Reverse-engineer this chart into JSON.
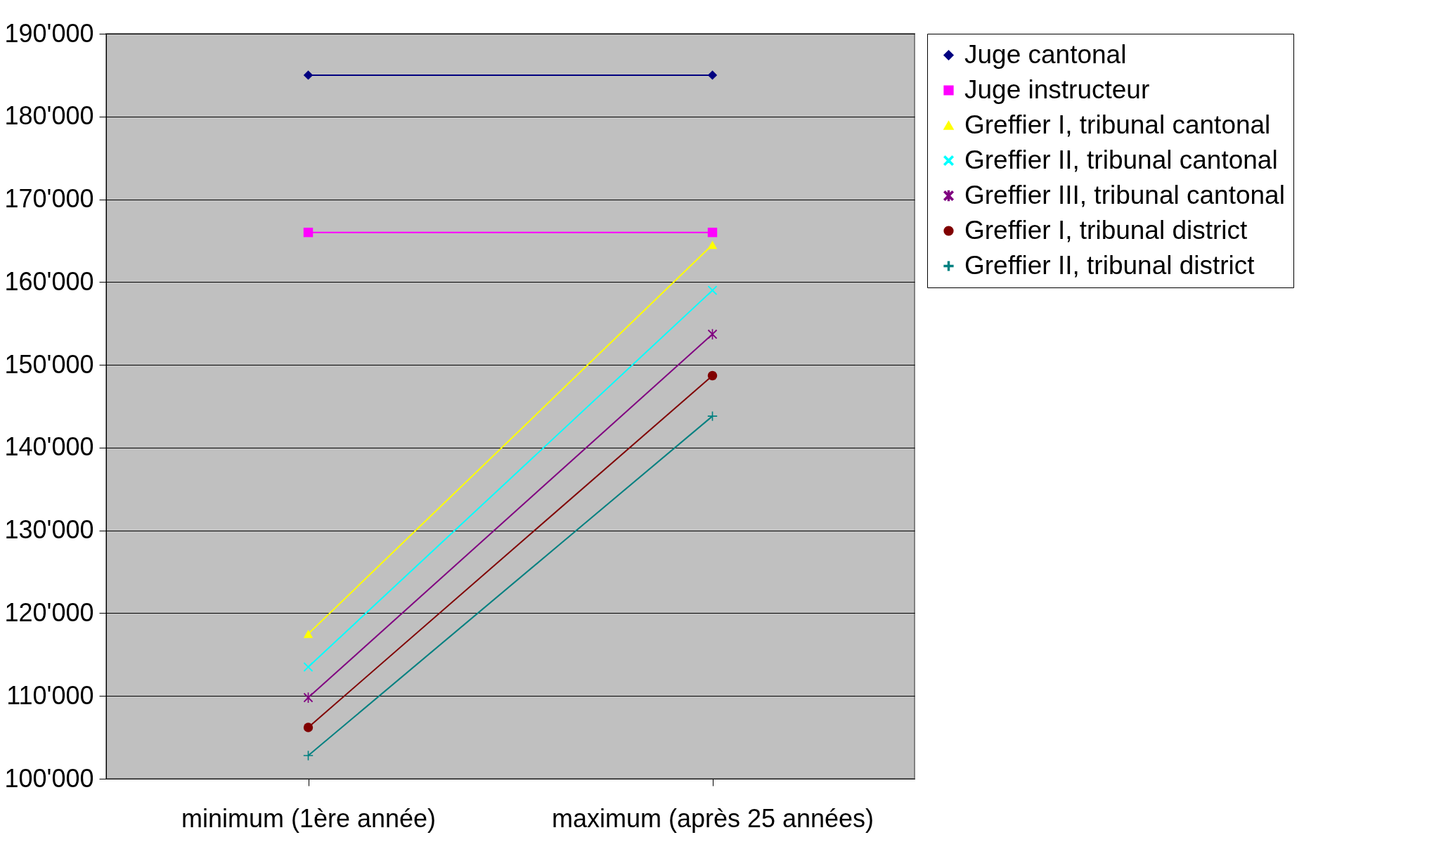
{
  "chart_data": {
    "type": "line",
    "categories": [
      "minimum (1ère année)",
      "maximum (après 25 années)"
    ],
    "series": [
      {
        "name": "Juge cantonal",
        "color": "#000080",
        "marker": "diamond",
        "values": [
          185000,
          185000
        ]
      },
      {
        "name": "Juge instructeur",
        "color": "#ff00ff",
        "marker": "square",
        "values": [
          166000,
          166000
        ]
      },
      {
        "name": "Greffier I,   tribunal cantonal",
        "color": "#ffff00",
        "marker": "triangle",
        "values": [
          117500,
          164500
        ]
      },
      {
        "name": "Greffier II,  tribunal cantonal",
        "color": "#00ffff",
        "marker": "cross",
        "values": [
          113500,
          159000
        ]
      },
      {
        "name": "Greffier III, tribunal cantonal",
        "color": "#800080",
        "marker": "star",
        "values": [
          109800,
          153700
        ]
      },
      {
        "name": "Greffier I,   tribunal district",
        "color": "#800000",
        "marker": "circle",
        "values": [
          106200,
          148700
        ]
      },
      {
        "name": "Greffier II,  tribunal district",
        "color": "#008080",
        "marker": "plus",
        "values": [
          102800,
          143800
        ]
      }
    ],
    "ylim": [
      100000,
      190000
    ],
    "yticks": [
      {
        "value": 100000,
        "label": "100'000"
      },
      {
        "value": 110000,
        "label": "110'000"
      },
      {
        "value": 120000,
        "label": "120'000"
      },
      {
        "value": 130000,
        "label": "130'000"
      },
      {
        "value": 140000,
        "label": "140'000"
      },
      {
        "value": 150000,
        "label": "150'000"
      },
      {
        "value": 160000,
        "label": "160'000"
      },
      {
        "value": 170000,
        "label": "170'000"
      },
      {
        "value": 180000,
        "label": "180'000"
      },
      {
        "value": 190000,
        "label": "190'000"
      }
    ],
    "grid": "y",
    "legend": "right",
    "line_style": "solid"
  }
}
